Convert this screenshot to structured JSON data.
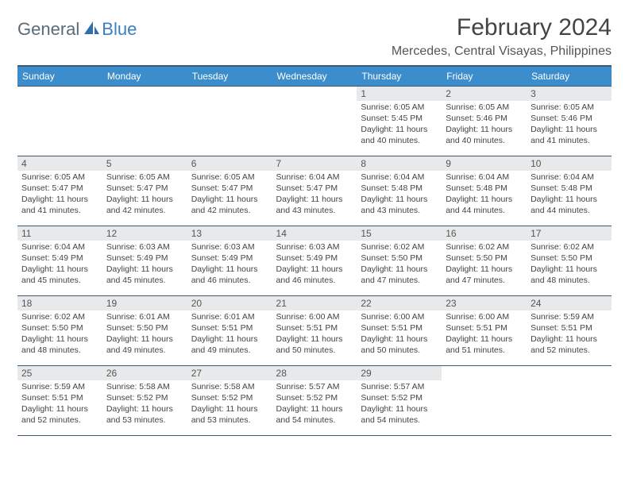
{
  "brand": {
    "part1": "General",
    "part2": "Blue"
  },
  "title": "February 2024",
  "location": "Mercedes, Central Visayas, Philippines",
  "colors": {
    "header_bg": "#3c8dcc",
    "header_border": "#3b5a78",
    "daynum_bg": "#e8e9ea",
    "text": "#444444",
    "brand_gray": "#5a6b78",
    "brand_blue": "#3a7fc4"
  },
  "weekdays": [
    "Sunday",
    "Monday",
    "Tuesday",
    "Wednesday",
    "Thursday",
    "Friday",
    "Saturday"
  ],
  "weeks": [
    [
      {
        "empty": true
      },
      {
        "empty": true
      },
      {
        "empty": true
      },
      {
        "empty": true
      },
      {
        "n": "1",
        "sunrise": "Sunrise: 6:05 AM",
        "sunset": "Sunset: 5:45 PM",
        "d1": "Daylight: 11 hours",
        "d2": "and 40 minutes."
      },
      {
        "n": "2",
        "sunrise": "Sunrise: 6:05 AM",
        "sunset": "Sunset: 5:46 PM",
        "d1": "Daylight: 11 hours",
        "d2": "and 40 minutes."
      },
      {
        "n": "3",
        "sunrise": "Sunrise: 6:05 AM",
        "sunset": "Sunset: 5:46 PM",
        "d1": "Daylight: 11 hours",
        "d2": "and 41 minutes."
      }
    ],
    [
      {
        "n": "4",
        "sunrise": "Sunrise: 6:05 AM",
        "sunset": "Sunset: 5:47 PM",
        "d1": "Daylight: 11 hours",
        "d2": "and 41 minutes."
      },
      {
        "n": "5",
        "sunrise": "Sunrise: 6:05 AM",
        "sunset": "Sunset: 5:47 PM",
        "d1": "Daylight: 11 hours",
        "d2": "and 42 minutes."
      },
      {
        "n": "6",
        "sunrise": "Sunrise: 6:05 AM",
        "sunset": "Sunset: 5:47 PM",
        "d1": "Daylight: 11 hours",
        "d2": "and 42 minutes."
      },
      {
        "n": "7",
        "sunrise": "Sunrise: 6:04 AM",
        "sunset": "Sunset: 5:47 PM",
        "d1": "Daylight: 11 hours",
        "d2": "and 43 minutes."
      },
      {
        "n": "8",
        "sunrise": "Sunrise: 6:04 AM",
        "sunset": "Sunset: 5:48 PM",
        "d1": "Daylight: 11 hours",
        "d2": "and 43 minutes."
      },
      {
        "n": "9",
        "sunrise": "Sunrise: 6:04 AM",
        "sunset": "Sunset: 5:48 PM",
        "d1": "Daylight: 11 hours",
        "d2": "and 44 minutes."
      },
      {
        "n": "10",
        "sunrise": "Sunrise: 6:04 AM",
        "sunset": "Sunset: 5:48 PM",
        "d1": "Daylight: 11 hours",
        "d2": "and 44 minutes."
      }
    ],
    [
      {
        "n": "11",
        "sunrise": "Sunrise: 6:04 AM",
        "sunset": "Sunset: 5:49 PM",
        "d1": "Daylight: 11 hours",
        "d2": "and 45 minutes."
      },
      {
        "n": "12",
        "sunrise": "Sunrise: 6:03 AM",
        "sunset": "Sunset: 5:49 PM",
        "d1": "Daylight: 11 hours",
        "d2": "and 45 minutes."
      },
      {
        "n": "13",
        "sunrise": "Sunrise: 6:03 AM",
        "sunset": "Sunset: 5:49 PM",
        "d1": "Daylight: 11 hours",
        "d2": "and 46 minutes."
      },
      {
        "n": "14",
        "sunrise": "Sunrise: 6:03 AM",
        "sunset": "Sunset: 5:49 PM",
        "d1": "Daylight: 11 hours",
        "d2": "and 46 minutes."
      },
      {
        "n": "15",
        "sunrise": "Sunrise: 6:02 AM",
        "sunset": "Sunset: 5:50 PM",
        "d1": "Daylight: 11 hours",
        "d2": "and 47 minutes."
      },
      {
        "n": "16",
        "sunrise": "Sunrise: 6:02 AM",
        "sunset": "Sunset: 5:50 PM",
        "d1": "Daylight: 11 hours",
        "d2": "and 47 minutes."
      },
      {
        "n": "17",
        "sunrise": "Sunrise: 6:02 AM",
        "sunset": "Sunset: 5:50 PM",
        "d1": "Daylight: 11 hours",
        "d2": "and 48 minutes."
      }
    ],
    [
      {
        "n": "18",
        "sunrise": "Sunrise: 6:02 AM",
        "sunset": "Sunset: 5:50 PM",
        "d1": "Daylight: 11 hours",
        "d2": "and 48 minutes."
      },
      {
        "n": "19",
        "sunrise": "Sunrise: 6:01 AM",
        "sunset": "Sunset: 5:50 PM",
        "d1": "Daylight: 11 hours",
        "d2": "and 49 minutes."
      },
      {
        "n": "20",
        "sunrise": "Sunrise: 6:01 AM",
        "sunset": "Sunset: 5:51 PM",
        "d1": "Daylight: 11 hours",
        "d2": "and 49 minutes."
      },
      {
        "n": "21",
        "sunrise": "Sunrise: 6:00 AM",
        "sunset": "Sunset: 5:51 PM",
        "d1": "Daylight: 11 hours",
        "d2": "and 50 minutes."
      },
      {
        "n": "22",
        "sunrise": "Sunrise: 6:00 AM",
        "sunset": "Sunset: 5:51 PM",
        "d1": "Daylight: 11 hours",
        "d2": "and 50 minutes."
      },
      {
        "n": "23",
        "sunrise": "Sunrise: 6:00 AM",
        "sunset": "Sunset: 5:51 PM",
        "d1": "Daylight: 11 hours",
        "d2": "and 51 minutes."
      },
      {
        "n": "24",
        "sunrise": "Sunrise: 5:59 AM",
        "sunset": "Sunset: 5:51 PM",
        "d1": "Daylight: 11 hours",
        "d2": "and 52 minutes."
      }
    ],
    [
      {
        "n": "25",
        "sunrise": "Sunrise: 5:59 AM",
        "sunset": "Sunset: 5:51 PM",
        "d1": "Daylight: 11 hours",
        "d2": "and 52 minutes."
      },
      {
        "n": "26",
        "sunrise": "Sunrise: 5:58 AM",
        "sunset": "Sunset: 5:52 PM",
        "d1": "Daylight: 11 hours",
        "d2": "and 53 minutes."
      },
      {
        "n": "27",
        "sunrise": "Sunrise: 5:58 AM",
        "sunset": "Sunset: 5:52 PM",
        "d1": "Daylight: 11 hours",
        "d2": "and 53 minutes."
      },
      {
        "n": "28",
        "sunrise": "Sunrise: 5:57 AM",
        "sunset": "Sunset: 5:52 PM",
        "d1": "Daylight: 11 hours",
        "d2": "and 54 minutes."
      },
      {
        "n": "29",
        "sunrise": "Sunrise: 5:57 AM",
        "sunset": "Sunset: 5:52 PM",
        "d1": "Daylight: 11 hours",
        "d2": "and 54 minutes."
      },
      {
        "empty": true
      },
      {
        "empty": true
      }
    ]
  ]
}
